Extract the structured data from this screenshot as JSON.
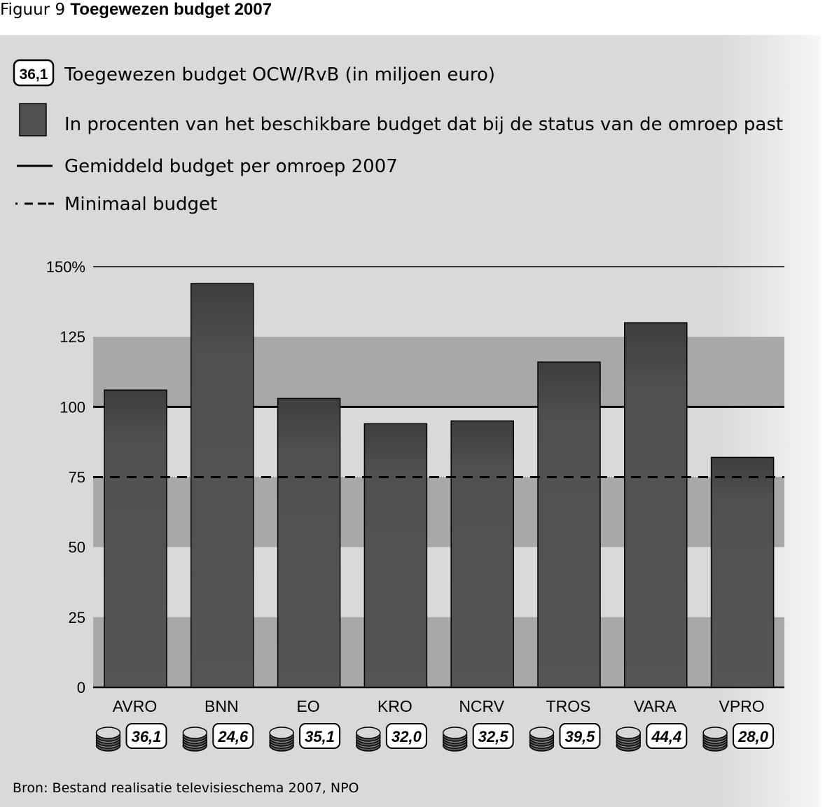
{
  "figure": {
    "number_label": "Figuur 9",
    "title": "Toegewezen budget 2007"
  },
  "legend": {
    "badge_example": "36,1",
    "badge_text": "Toegewezen budget OCW/RvB (in miljoen euro)",
    "bar_text": "In procenten van het beschikbare budget dat bij de status van de omroep past",
    "solid_line_text": "Gemiddeld budget per omroep 2007",
    "dashed_line_text": "Minimaal budget"
  },
  "source": "Bron: Bestand realisatie televisieschema 2007, NPO",
  "colors": {
    "bar": "#505050",
    "band_dark": "#a8a8a8",
    "band_light": "#d9d9d9",
    "line": "#000000"
  },
  "chart_data": {
    "type": "bar",
    "categories": [
      "AVRO",
      "BNN",
      "EO",
      "KRO",
      "NCRV",
      "TROS",
      "VARA",
      "VPRO"
    ],
    "values": [
      106,
      144,
      103,
      94,
      95,
      116,
      130,
      82
    ],
    "budgets": [
      "36,1",
      "24,6",
      "35,1",
      "32,0",
      "32,5",
      "39,5",
      "44,4",
      "28,0"
    ],
    "ylim": [
      0,
      150
    ],
    "yticks": [
      0,
      25,
      50,
      75,
      100,
      125,
      150
    ],
    "ytick_labels": [
      "0",
      "25",
      "50",
      "75",
      "100",
      "125",
      "150%"
    ],
    "average_line": 100,
    "minimum_line": 75,
    "bands": [
      [
        0,
        25
      ],
      [
        50,
        75
      ],
      [
        100,
        125
      ]
    ],
    "xlabel": "",
    "ylabel": ""
  }
}
